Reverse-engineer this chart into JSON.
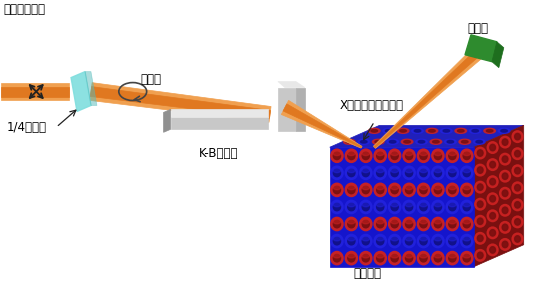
{
  "bg_color": "#ffffff",
  "labels": {
    "suihei": "水平直線偏光",
    "en_hiko": "円偏光",
    "quarter": "1/4波長板",
    "kb_mirror": "K-Bミラー",
    "xray_beam": "X線マイクロビーム",
    "detector": "検出器",
    "sample": "試料結晶"
  },
  "beam_color_outer": "#F0A050",
  "beam_color_inner": "#E07820",
  "mirror_color_face": "#C8C8C8",
  "mirror_color_top": "#E8E8E8",
  "mirror_color_dark": "#909090",
  "detector_color": "#2E8B2E",
  "detector_dark": "#1A5C1A",
  "plate_color": "#80DEDE",
  "plate_dark": "#40AAAA",
  "crystal_blue": "#2222DD",
  "crystal_red": "#CC2222",
  "crystal_dark_red": "#7A1010",
  "crystal_dark_blue": "#111188",
  "text_color": "#000000",
  "font_size": 8.5
}
